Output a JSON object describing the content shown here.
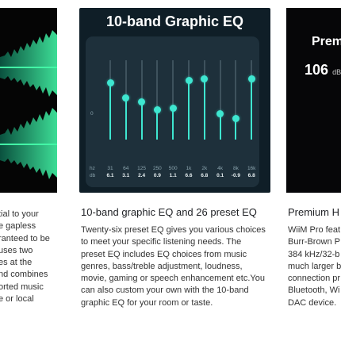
{
  "left": {
    "body_lines": [
      "tial to your",
      "e gapless",
      "ranteed to be",
      "uses two",
      "es at the",
      "nd combines",
      "orted music",
      "e or local"
    ]
  },
  "middle": {
    "image": {
      "title": "10-band Graphic EQ",
      "zero_label": "0",
      "hz_label": "hz",
      "db_label": "db",
      "bands": [
        {
          "freq": "31",
          "gain": "6.1"
        },
        {
          "freq": "64",
          "gain": "3.1"
        },
        {
          "freq": "125",
          "gain": "2.4"
        },
        {
          "freq": "250",
          "gain": "0.9"
        },
        {
          "freq": "500",
          "gain": "1.1"
        },
        {
          "freq": "1k",
          "gain": "6.6"
        },
        {
          "freq": "2k",
          "gain": "6.8"
        },
        {
          "freq": "4k",
          "gain": "0.1"
        },
        {
          "freq": "8k",
          "gain": "-0.9"
        },
        {
          "freq": "16k",
          "gain": "6.8"
        }
      ]
    },
    "title": "10-band graphic EQ and 26 preset EQ",
    "body_lines": [
      "Twenty-six preset EQ gives you various choices",
      "to meet your specific listening needs. The",
      "preset EQ includes EQ choices from music",
      "genres, bass/treble adjustment, loudness,",
      "movie, gaming or speech enhancement etc.You",
      "can also custom your own with the 10-band",
      "graphic EQ for your room or taste."
    ]
  },
  "right": {
    "image": {
      "title": "Prem",
      "number": "106",
      "unit": "dB"
    },
    "title": "Premium H",
    "body_lines": [
      "WiiM Pro feat",
      "Burr-Brown P",
      "384 kHz/32-b",
      "much larger b",
      "connection pr",
      "Bluetooth, Wi",
      "DAC device."
    ]
  },
  "colors": {
    "accent": "#3ee6d0",
    "panel_bg": "#1e303b",
    "wave": "#43f5a6"
  }
}
